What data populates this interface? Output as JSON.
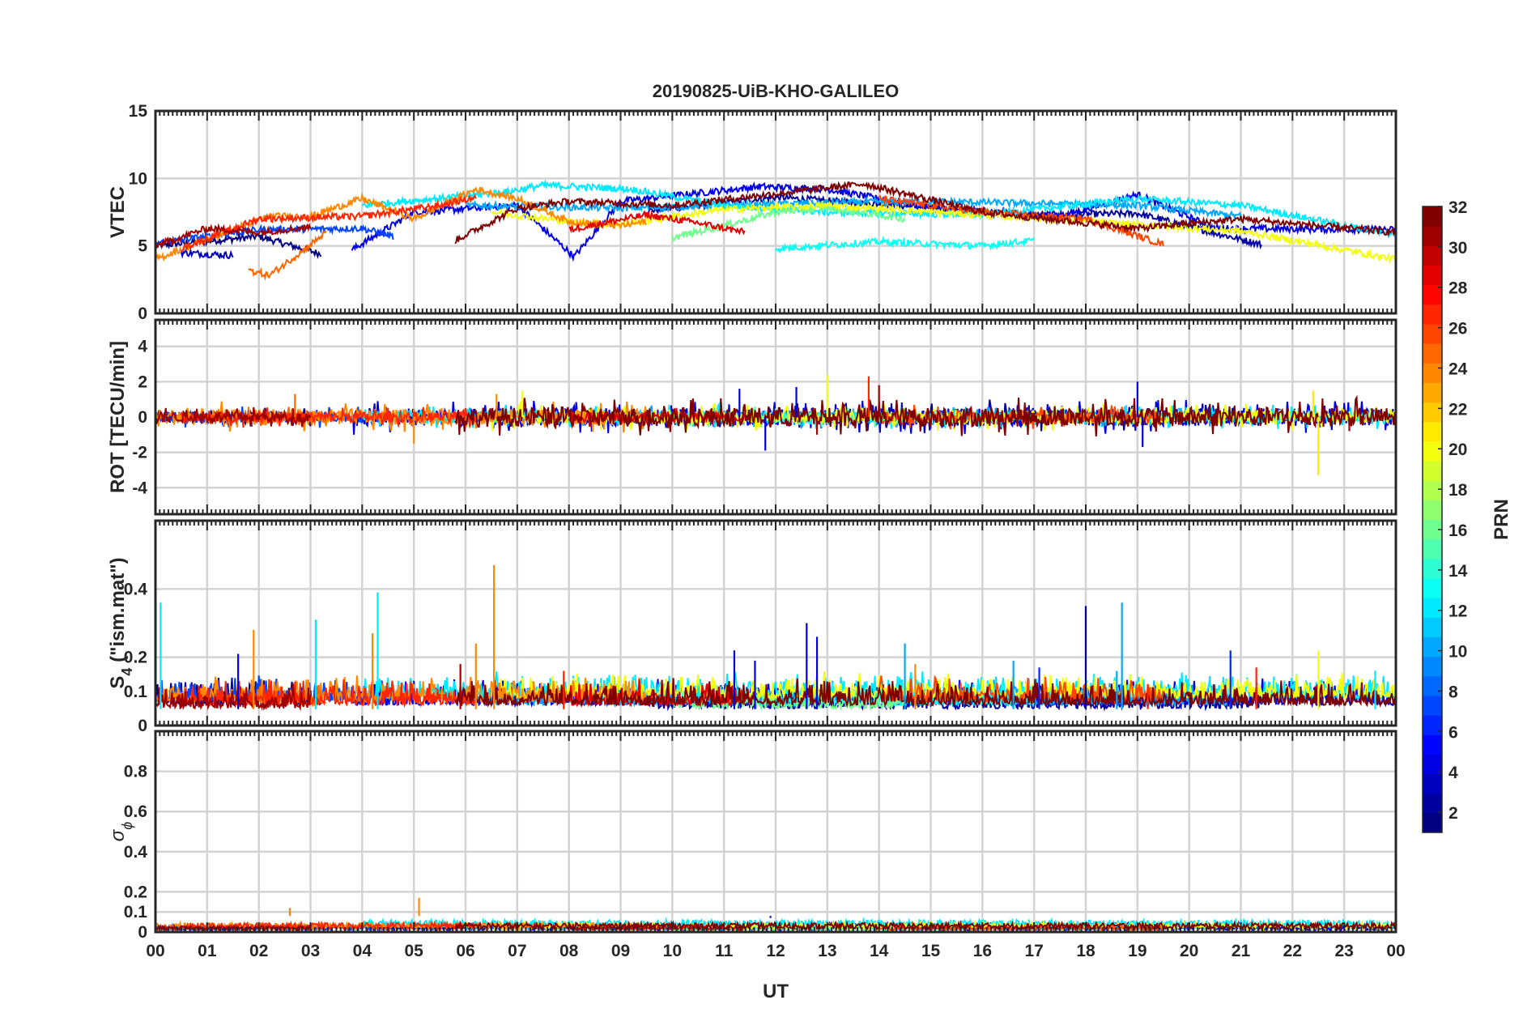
{
  "chart_data": {
    "type": "line",
    "title": "20190825-UiB-KHO-GALILEO",
    "xlabel": "UT",
    "x_range_hours": [
      0,
      24
    ],
    "x_ticks": [
      "00",
      "01",
      "02",
      "03",
      "04",
      "05",
      "06",
      "07",
      "08",
      "09",
      "10",
      "11",
      "12",
      "13",
      "14",
      "15",
      "16",
      "17",
      "18",
      "19",
      "20",
      "21",
      "22",
      "23",
      "00"
    ],
    "grid": true,
    "colormap": "jet",
    "panels": [
      {
        "id": "vtec",
        "ylabel": "VTEC",
        "ylim": [
          0,
          15
        ],
        "yticks": [
          0,
          5,
          10,
          15
        ],
        "ytick_labels": [
          "0",
          "5",
          "10",
          "15"
        ]
      },
      {
        "id": "rot",
        "ylabel": "ROT [TECU/min]",
        "ylim": [
          -5.5,
          5.5
        ],
        "yticks": [
          -4,
          -2,
          0,
          2,
          4
        ],
        "ytick_labels": [
          "-4",
          "-2",
          "0",
          "2",
          "4"
        ]
      },
      {
        "id": "s4",
        "ylabel_main": "S",
        "ylabel_sub": "4",
        "ylabel_rest": " (\"ism.mat\")",
        "ylim": [
          0,
          0.6
        ],
        "yticks": [
          0,
          0.1,
          0.2,
          0.4
        ],
        "ytick_labels": [
          "0",
          "0.1",
          "0.2",
          "0.4"
        ]
      },
      {
        "id": "sigphi",
        "ylabel_main": "σ",
        "ylabel_sub": "ϕ",
        "ylim": [
          0,
          1
        ],
        "yticks": [
          0,
          0.1,
          0.2,
          0.4,
          0.6,
          0.8
        ],
        "ytick_labels": [
          "0",
          "0.1",
          "0.2",
          "0.4",
          "0.6",
          "0.8"
        ]
      }
    ],
    "colorbar": {
      "label": "PRN",
      "min": 1,
      "max": 32,
      "ticks": [
        2,
        4,
        6,
        8,
        10,
        12,
        14,
        16,
        18,
        20,
        22,
        24,
        26,
        28,
        30,
        32
      ]
    },
    "series": [
      {
        "prn": 1,
        "vtec": [
          [
            0,
            5.0
          ],
          [
            2,
            5.7
          ],
          [
            3.2,
            4.4
          ]
        ],
        "rot_noise": 0.3,
        "s4_base": 0.06,
        "sig_base": 0.02
      },
      {
        "prn": 2,
        "vtec": [
          [
            9.5,
            7.6
          ],
          [
            12,
            8.6
          ],
          [
            14,
            8.1
          ],
          [
            17,
            7.3
          ],
          [
            19,
            7.4
          ],
          [
            21.4,
            5.1
          ]
        ],
        "rot_noise": 0.4,
        "s4_base": 0.05,
        "sig_base": 0.03
      },
      {
        "prn": 3,
        "vtec": [
          [
            0.5,
            4.5
          ],
          [
            1.5,
            4.3
          ]
        ],
        "rot_noise": 0.3,
        "s4_base": 0.07,
        "sig_base": 0.02
      },
      {
        "prn": 4,
        "vtec": [
          [
            3.8,
            4.7
          ],
          [
            5,
            7.5
          ],
          [
            7,
            8.0
          ],
          [
            8.1,
            4.2
          ],
          [
            9,
            8.3
          ],
          [
            11.7,
            9.4
          ],
          [
            13,
            9.2
          ],
          [
            15,
            7.8
          ],
          [
            17.5,
            7.2
          ],
          [
            19,
            8.8
          ],
          [
            20.5,
            6.3
          ],
          [
            24,
            6.2
          ]
        ],
        "rot_noise": 0.5,
        "s4_base": 0.06,
        "sig_base": 0.02
      },
      {
        "prn": 7,
        "vtec": [
          [
            0,
            5.2
          ],
          [
            2,
            6.2
          ],
          [
            4,
            6.3
          ],
          [
            4.6,
            5.7
          ]
        ],
        "rot_noise": 0.3,
        "s4_base": 0.07,
        "sig_base": 0.02
      },
      {
        "prn": 10,
        "vtec": [
          [
            6,
            8.0
          ],
          [
            9,
            7.8
          ],
          [
            11,
            8.0
          ],
          [
            13,
            8.2
          ],
          [
            15,
            8.3
          ],
          [
            19,
            8.0
          ],
          [
            21,
            7.2
          ]
        ],
        "rot_noise": 0.3,
        "s4_base": 0.06,
        "sig_base": 0.03
      },
      {
        "prn": 12,
        "vtec": [
          [
            4,
            8.0
          ],
          [
            6.8,
            9.0
          ],
          [
            7.5,
            9.5
          ],
          [
            9.2,
            9.2
          ],
          [
            11,
            8.0
          ],
          [
            13,
            7.5
          ],
          [
            16,
            7.3
          ],
          [
            19,
            8.5
          ],
          [
            21,
            8.0
          ],
          [
            24,
            5.8
          ]
        ],
        "rot_noise": 0.35,
        "s4_base": 0.08,
        "sig_base": 0.04
      },
      {
        "prn": 13,
        "vtec": [
          [
            12,
            4.8
          ],
          [
            14,
            5.3
          ],
          [
            16,
            5.0
          ],
          [
            17,
            5.4
          ]
        ],
        "rot_noise": 0.2,
        "s4_base": 0.06,
        "sig_base": 0.03
      },
      {
        "prn": 16,
        "vtec": [
          [
            10,
            5.6
          ],
          [
            11,
            6.5
          ],
          [
            12,
            7.5
          ],
          [
            13,
            7.8
          ],
          [
            14.5,
            7.0
          ]
        ],
        "rot_noise": 0.3,
        "s4_base": 0.05,
        "sig_base": 0.02
      },
      {
        "prn": 20,
        "vtec": [
          [
            6.5,
            7.5
          ],
          [
            8,
            6.8
          ],
          [
            9,
            6.6
          ],
          [
            11,
            7.7
          ],
          [
            13,
            8.0
          ],
          [
            21,
            6.1
          ],
          [
            24,
            4.0
          ]
        ],
        "rot_noise": 0.4,
        "s4_base": 0.08,
        "sig_base": 0.03
      },
      {
        "prn": 24,
        "vtec": [
          [
            0,
            4.0
          ],
          [
            1,
            5.5
          ],
          [
            2.2,
            7.2
          ],
          [
            3,
            7.2
          ],
          [
            4,
            8.5
          ],
          [
            5,
            7.0
          ],
          [
            6.2,
            9.2
          ],
          [
            7,
            8.5
          ],
          [
            8,
            6.8
          ],
          [
            9,
            6.5
          ],
          [
            9.5,
            6.8
          ]
        ],
        "rot_noise": 0.45,
        "s4_base": 0.07,
        "sig_base": 0.03
      },
      {
        "prn": 25,
        "vtec": [
          [
            1.8,
            3.2
          ],
          [
            2.2,
            2.8
          ],
          [
            2.8,
            4.5
          ],
          [
            3.3,
            6.0
          ]
        ],
        "rot_noise": 0.3,
        "s4_base": 0.06,
        "sig_base": 0.02
      },
      {
        "prn": 26,
        "vtec": [
          [
            14,
            8.5
          ],
          [
            16,
            7.5
          ],
          [
            18,
            7.0
          ],
          [
            19.5,
            5.1
          ]
        ],
        "rot_noise": 0.35,
        "s4_base": 0.07,
        "sig_base": 0.02
      },
      {
        "prn": 27,
        "vtec": [
          [
            0.5,
            4.8
          ],
          [
            2,
            7.0
          ],
          [
            4,
            7.2
          ],
          [
            5.5,
            8.0
          ],
          [
            6.2,
            8.6
          ]
        ],
        "rot_noise": 0.3,
        "s4_base": 0.06,
        "sig_base": 0.03
      },
      {
        "prn": 29,
        "vtec": [
          [
            8,
            6.2
          ],
          [
            9.5,
            7.3
          ],
          [
            10.5,
            6.7
          ],
          [
            11.4,
            6.0
          ]
        ],
        "rot_noise": 0.3,
        "s4_base": 0.06,
        "sig_base": 0.02
      },
      {
        "prn": 31,
        "vtec": [
          [
            0,
            5.0
          ],
          [
            1,
            6.3
          ],
          [
            2,
            6.0
          ],
          [
            3,
            6.4
          ]
        ],
        "rot_noise": 0.3,
        "s4_base": 0.05,
        "sig_base": 0.02
      },
      {
        "prn": 32,
        "vtec": [
          [
            5.8,
            5.4
          ],
          [
            7,
            7.8
          ],
          [
            8,
            8.3
          ],
          [
            10,
            8.0
          ],
          [
            13.7,
            9.6
          ],
          [
            16,
            7.5
          ],
          [
            19,
            6.3
          ],
          [
            21,
            7.0
          ],
          [
            24,
            6.0
          ]
        ],
        "rot_noise": 0.55,
        "s4_base": 0.06,
        "sig_base": 0.03
      }
    ],
    "spikes": {
      "rot": [
        [
          2.7,
          1.3,
          25
        ],
        [
          5.0,
          -1.5,
          24
        ],
        [
          6.6,
          1.3,
          24
        ],
        [
          7.1,
          1.5,
          20
        ],
        [
          11.3,
          1.6,
          4
        ],
        [
          11.8,
          -1.9,
          4
        ],
        [
          12.4,
          1.7,
          4
        ],
        [
          12.8,
          -1.0,
          31
        ],
        [
          13.0,
          2.4,
          20
        ],
        [
          13.8,
          2.3,
          27
        ],
        [
          14.0,
          1.8,
          31
        ],
        [
          19.0,
          2.0,
          4
        ],
        [
          19.1,
          -1.7,
          4
        ],
        [
          22.4,
          1.5,
          21
        ],
        [
          22.5,
          -3.3,
          21
        ],
        [
          23.1,
          -0.8,
          31
        ]
      ],
      "s4": [
        [
          0.1,
          0.36,
          12
        ],
        [
          1.6,
          0.21,
          4
        ],
        [
          1.9,
          0.28,
          24
        ],
        [
          3.1,
          0.31,
          12
        ],
        [
          4.3,
          0.39,
          12
        ],
        [
          4.2,
          0.27,
          24
        ],
        [
          5.9,
          0.18,
          31
        ],
        [
          6.2,
          0.24,
          24
        ],
        [
          6.55,
          0.47,
          24
        ],
        [
          7.9,
          0.16,
          27
        ],
        [
          11.2,
          0.22,
          4
        ],
        [
          11.6,
          0.19,
          4
        ],
        [
          12.6,
          0.3,
          4
        ],
        [
          12.8,
          0.26,
          4
        ],
        [
          14.5,
          0.24,
          10
        ],
        [
          14.7,
          0.18,
          24
        ],
        [
          16.6,
          0.19,
          10
        ],
        [
          17.1,
          0.17,
          6
        ],
        [
          18.0,
          0.35,
          2
        ],
        [
          18.7,
          0.36,
          10
        ],
        [
          18.6,
          0.16,
          10
        ],
        [
          19.2,
          0.12,
          27
        ],
        [
          20.8,
          0.22,
          6
        ],
        [
          21.3,
          0.17,
          27
        ],
        [
          22.5,
          0.22,
          20
        ],
        [
          23.6,
          0.16,
          12
        ]
      ],
      "sigphi": [
        [
          2.6,
          0.12,
          24
        ],
        [
          5.1,
          0.17,
          24
        ],
        [
          11.9,
          0.07,
          4
        ]
      ]
    }
  }
}
